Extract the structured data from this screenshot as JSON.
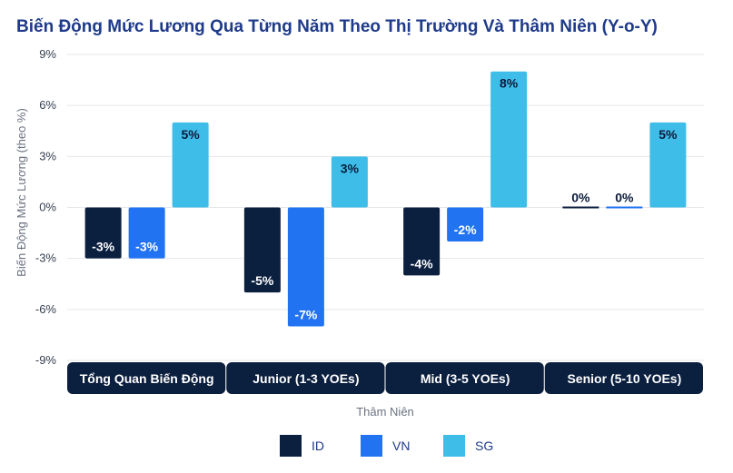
{
  "chart_data": {
    "type": "bar",
    "title": "Biến Động Mức Lương Qua Từng Năm Theo Thị Trường Và Thâm Niên (Y-o-Y)",
    "xlabel": "Thâm Niên",
    "ylabel": "Biến Động Mức Lương (theo %)",
    "categories": [
      "Tổng Quan Biến Động",
      "Junior (1-3 YOEs)",
      "Mid (3-5 YOEs)",
      "Senior (5-10 YOEs)"
    ],
    "series": [
      {
        "name": "ID",
        "values": [
          -3,
          -5,
          -4,
          0
        ],
        "labels": [
          "-3%",
          "-5%",
          "-4%",
          "0%"
        ],
        "color": "#0b1f3f"
      },
      {
        "name": "VN",
        "values": [
          -3,
          -7,
          -2,
          0
        ],
        "labels": [
          "-3%",
          "-7%",
          "-2%",
          "0%"
        ],
        "color": "#2173f2"
      },
      {
        "name": "SG",
        "values": [
          5,
          3,
          8,
          5
        ],
        "labels": [
          "5%",
          "3%",
          "8%",
          "5%"
        ],
        "color": "#3fbde9"
      }
    ],
    "ylim": [
      -9,
      9
    ],
    "yticks": [
      9,
      6,
      3,
      0,
      -3,
      -6,
      -9
    ],
    "ytick_labels": [
      "9%",
      "6%",
      "3%",
      "0%",
      "-3%",
      "-6%",
      "-9%"
    ],
    "grid": true,
    "legend": "bottom-center"
  }
}
